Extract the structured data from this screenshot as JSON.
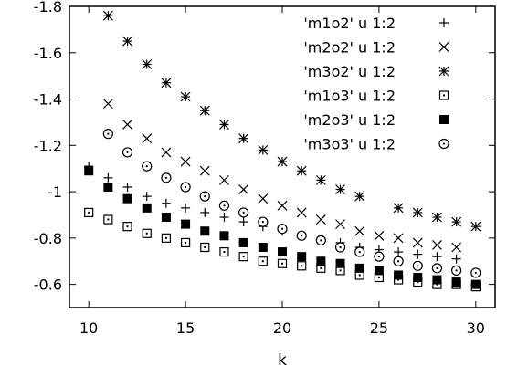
{
  "chart_data": {
    "type": "scatter",
    "title": "",
    "xlabel": "k",
    "ylabel": "",
    "xlim": [
      9,
      31
    ],
    "ylim": [
      -0.5,
      -1.8
    ],
    "y_axis_inverted": true,
    "grid": false,
    "legend_position": "top-right",
    "x_ticks": [
      "10",
      "15",
      "20",
      "25",
      "30"
    ],
    "x_tick_values": [
      10,
      15,
      20,
      25,
      30
    ],
    "y_ticks": [
      "-1.8",
      "-1.6",
      "-1.4",
      "-1.2",
      "-1",
      "-0.8",
      "-0.6"
    ],
    "y_tick_values": [
      -1.8,
      -1.6,
      -1.4,
      -1.2,
      -1.0,
      -0.8,
      -0.6
    ],
    "series": [
      {
        "name": "'m1o2' u 1:2",
        "marker": "plus",
        "x": [
          10,
          11,
          12,
          13,
          14,
          15,
          16,
          17,
          18,
          19,
          20,
          21,
          22,
          23,
          24,
          25,
          26,
          27,
          28,
          29
        ],
        "y": [
          -1.11,
          -1.06,
          -1.02,
          -0.98,
          -0.95,
          -0.93,
          -0.91,
          -0.89,
          -0.87,
          -0.85,
          -0.83,
          -0.81,
          -0.79,
          -0.78,
          -0.76,
          -0.75,
          -0.74,
          -0.73,
          -0.72,
          -0.71
        ]
      },
      {
        "name": "'m2o2' u 1:2",
        "marker": "cross",
        "x": [
          11,
          12,
          13,
          14,
          15,
          16,
          17,
          18,
          19,
          20,
          21,
          22,
          23,
          24,
          25,
          26,
          27,
          28,
          29
        ],
        "y": [
          -1.38,
          -1.29,
          -1.23,
          -1.17,
          -1.13,
          -1.09,
          -1.05,
          -1.01,
          -0.97,
          -0.94,
          -0.91,
          -0.88,
          -0.86,
          -0.83,
          -0.81,
          -0.8,
          -0.78,
          -0.77,
          -0.76
        ]
      },
      {
        "name": "'m3o2' u 1:2",
        "marker": "star",
        "x": [
          11,
          12,
          13,
          14,
          15,
          16,
          17,
          18,
          19,
          20,
          21,
          22,
          23,
          24,
          26,
          27,
          28,
          29,
          30
        ],
        "y": [
          -1.76,
          -1.65,
          -1.55,
          -1.47,
          -1.41,
          -1.35,
          -1.29,
          -1.23,
          -1.18,
          -1.13,
          -1.09,
          -1.05,
          -1.01,
          -0.98,
          -0.93,
          -0.91,
          -0.89,
          -0.87,
          -0.85
        ]
      },
      {
        "name": "'m1o3' u 1:2",
        "marker": "box",
        "x": [
          10,
          11,
          12,
          13,
          14,
          15,
          16,
          17,
          18,
          19,
          20,
          21,
          22,
          23,
          24,
          25,
          26,
          27,
          28,
          29,
          30
        ],
        "y": [
          -0.91,
          -0.88,
          -0.85,
          -0.82,
          -0.8,
          -0.78,
          -0.76,
          -0.74,
          -0.72,
          -0.7,
          -0.69,
          -0.68,
          -0.67,
          -0.66,
          -0.64,
          -0.63,
          -0.62,
          -0.61,
          -0.6,
          -0.6,
          -0.59
        ]
      },
      {
        "name": "'m2o3' u 1:2",
        "marker": "filled-box",
        "x": [
          10,
          11,
          12,
          13,
          14,
          15,
          16,
          17,
          18,
          19,
          20,
          21,
          22,
          23,
          24,
          25,
          26,
          27,
          28,
          29,
          30
        ],
        "y": [
          -1.09,
          -1.02,
          -0.97,
          -0.93,
          -0.89,
          -0.86,
          -0.83,
          -0.81,
          -0.78,
          -0.76,
          -0.74,
          -0.72,
          -0.7,
          -0.69,
          -0.67,
          -0.66,
          -0.64,
          -0.63,
          -0.62,
          -0.61,
          -0.6
        ]
      },
      {
        "name": "'m3o3' u 1:2",
        "marker": "circle-dot",
        "x": [
          11,
          12,
          13,
          14,
          15,
          16,
          17,
          18,
          19,
          20,
          21,
          22,
          23,
          24,
          25,
          26,
          27,
          28,
          29,
          30
        ],
        "y": [
          -1.25,
          -1.17,
          -1.11,
          -1.06,
          -1.02,
          -0.98,
          -0.94,
          -0.91,
          -0.87,
          -0.84,
          -0.81,
          -0.79,
          -0.76,
          -0.74,
          -0.72,
          -0.7,
          -0.68,
          -0.67,
          -0.66,
          -0.65
        ]
      }
    ]
  }
}
